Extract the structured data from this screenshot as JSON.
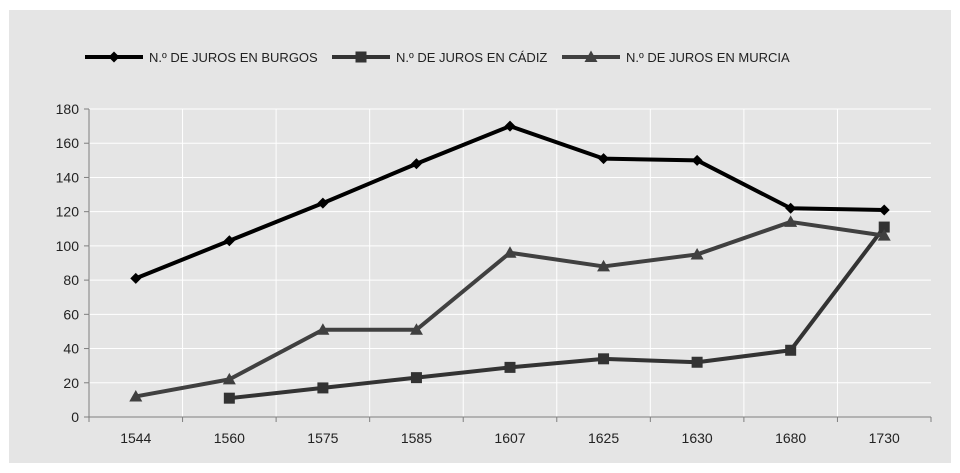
{
  "chart_data": {
    "type": "line",
    "title": "",
    "xlabel": "",
    "ylabel": "",
    "categories": [
      "1544",
      "1560",
      "1575",
      "1585",
      "1607",
      "1625",
      "1630",
      "1680",
      "1730"
    ],
    "ylim": [
      0,
      180
    ],
    "yticks": [
      0,
      20,
      40,
      60,
      80,
      100,
      120,
      140,
      160,
      180
    ],
    "grid": true,
    "legend_position": "top",
    "series": [
      {
        "name": "N.º DE JUROS  EN BURGOS",
        "color": "#000000",
        "marker": "diamond",
        "values": [
          81,
          103,
          125,
          148,
          170,
          151,
          150,
          122,
          121
        ]
      },
      {
        "name": "N.º DE JUROS EN CÁDIZ",
        "color": "#333333",
        "marker": "square",
        "values": [
          null,
          11,
          17,
          23,
          29,
          34,
          32,
          39,
          111
        ]
      },
      {
        "name": "N.º DE JUROS EN MURCIA",
        "color": "#404040",
        "marker": "triangle",
        "values": [
          12,
          22,
          51,
          51,
          96,
          88,
          95,
          114,
          106
        ]
      }
    ]
  }
}
